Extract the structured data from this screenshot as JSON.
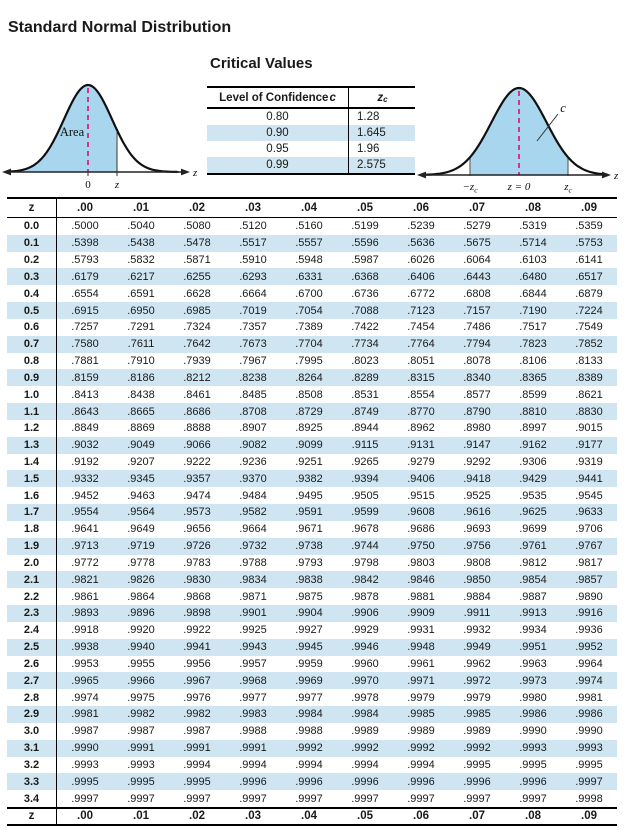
{
  "title": "Standard Normal Distribution",
  "critical_values": {
    "heading": "Critical Values",
    "header": {
      "col1": "Level of Confidence ",
      "col1_var": "c",
      "col2_var": "z",
      "col2_sub": "c"
    },
    "rows": [
      [
        "0.80",
        "1.28"
      ],
      [
        "0.90",
        "1.645"
      ],
      [
        "0.95",
        "1.96"
      ],
      [
        "0.99",
        "2.575"
      ]
    ]
  },
  "left_curve": {
    "area_label": "Area",
    "axis_label": "z",
    "tick_zero": "0",
    "tick_z": "z"
  },
  "right_curve": {
    "region_label": "c",
    "axis_label": "z",
    "tick_neg": "−z",
    "tick_neg_sub": "c",
    "tick_center": "z = 0",
    "tick_pos": "z",
    "tick_pos_sub": "c"
  },
  "colors": {
    "stripe": "#cfe6f2",
    "curve_fill": "#a9d6ef",
    "dashed_line": "#d6338c",
    "border": "#000000"
  },
  "z_table": {
    "columns": [
      "z",
      ".00",
      ".01",
      ".02",
      ".03",
      ".04",
      ".05",
      ".06",
      ".07",
      ".08",
      ".09"
    ],
    "footer_repeats_header": true,
    "rows": [
      {
        "z": "0.0",
        "v": [
          ".5000",
          ".5040",
          ".5080",
          ".5120",
          ".5160",
          ".5199",
          ".5239",
          ".5279",
          ".5319",
          ".5359"
        ]
      },
      {
        "z": "0.1",
        "v": [
          ".5398",
          ".5438",
          ".5478",
          ".5517",
          ".5557",
          ".5596",
          ".5636",
          ".5675",
          ".5714",
          ".5753"
        ]
      },
      {
        "z": "0.2",
        "v": [
          ".5793",
          ".5832",
          ".5871",
          ".5910",
          ".5948",
          ".5987",
          ".6026",
          ".6064",
          ".6103",
          ".6141"
        ]
      },
      {
        "z": "0.3",
        "v": [
          ".6179",
          ".6217",
          ".6255",
          ".6293",
          ".6331",
          ".6368",
          ".6406",
          ".6443",
          ".6480",
          ".6517"
        ]
      },
      {
        "z": "0.4",
        "v": [
          ".6554",
          ".6591",
          ".6628",
          ".6664",
          ".6700",
          ".6736",
          ".6772",
          ".6808",
          ".6844",
          ".6879"
        ]
      },
      {
        "z": "0.5",
        "v": [
          ".6915",
          ".6950",
          ".6985",
          ".7019",
          ".7054",
          ".7088",
          ".7123",
          ".7157",
          ".7190",
          ".7224"
        ]
      },
      {
        "z": "0.6",
        "v": [
          ".7257",
          ".7291",
          ".7324",
          ".7357",
          ".7389",
          ".7422",
          ".7454",
          ".7486",
          ".7517",
          ".7549"
        ]
      },
      {
        "z": "0.7",
        "v": [
          ".7580",
          ".7611",
          ".7642",
          ".7673",
          ".7704",
          ".7734",
          ".7764",
          ".7794",
          ".7823",
          ".7852"
        ]
      },
      {
        "z": "0.8",
        "v": [
          ".7881",
          ".7910",
          ".7939",
          ".7967",
          ".7995",
          ".8023",
          ".8051",
          ".8078",
          ".8106",
          ".8133"
        ]
      },
      {
        "z": "0.9",
        "v": [
          ".8159",
          ".8186",
          ".8212",
          ".8238",
          ".8264",
          ".8289",
          ".8315",
          ".8340",
          ".8365",
          ".8389"
        ]
      },
      {
        "z": "1.0",
        "v": [
          ".8413",
          ".8438",
          ".8461",
          ".8485",
          ".8508",
          ".8531",
          ".8554",
          ".8577",
          ".8599",
          ".8621"
        ]
      },
      {
        "z": "1.1",
        "v": [
          ".8643",
          ".8665",
          ".8686",
          ".8708",
          ".8729",
          ".8749",
          ".8770",
          ".8790",
          ".8810",
          ".8830"
        ]
      },
      {
        "z": "1.2",
        "v": [
          ".8849",
          ".8869",
          ".8888",
          ".8907",
          ".8925",
          ".8944",
          ".8962",
          ".8980",
          ".8997",
          ".9015"
        ]
      },
      {
        "z": "1.3",
        "v": [
          ".9032",
          ".9049",
          ".9066",
          ".9082",
          ".9099",
          ".9115",
          ".9131",
          ".9147",
          ".9162",
          ".9177"
        ]
      },
      {
        "z": "1.4",
        "v": [
          ".9192",
          ".9207",
          ".9222",
          ".9236",
          ".9251",
          ".9265",
          ".9279",
          ".9292",
          ".9306",
          ".9319"
        ]
      },
      {
        "z": "1.5",
        "v": [
          ".9332",
          ".9345",
          ".9357",
          ".9370",
          ".9382",
          ".9394",
          ".9406",
          ".9418",
          ".9429",
          ".9441"
        ]
      },
      {
        "z": "1.6",
        "v": [
          ".9452",
          ".9463",
          ".9474",
          ".9484",
          ".9495",
          ".9505",
          ".9515",
          ".9525",
          ".9535",
          ".9545"
        ]
      },
      {
        "z": "1.7",
        "v": [
          ".9554",
          ".9564",
          ".9573",
          ".9582",
          ".9591",
          ".9599",
          ".9608",
          ".9616",
          ".9625",
          ".9633"
        ]
      },
      {
        "z": "1.8",
        "v": [
          ".9641",
          ".9649",
          ".9656",
          ".9664",
          ".9671",
          ".9678",
          ".9686",
          ".9693",
          ".9699",
          ".9706"
        ]
      },
      {
        "z": "1.9",
        "v": [
          ".9713",
          ".9719",
          ".9726",
          ".9732",
          ".9738",
          ".9744",
          ".9750",
          ".9756",
          ".9761",
          ".9767"
        ]
      },
      {
        "z": "2.0",
        "v": [
          ".9772",
          ".9778",
          ".9783",
          ".9788",
          ".9793",
          ".9798",
          ".9803",
          ".9808",
          ".9812",
          ".9817"
        ]
      },
      {
        "z": "2.1",
        "v": [
          ".9821",
          ".9826",
          ".9830",
          ".9834",
          ".9838",
          ".9842",
          ".9846",
          ".9850",
          ".9854",
          ".9857"
        ]
      },
      {
        "z": "2.2",
        "v": [
          ".9861",
          ".9864",
          ".9868",
          ".9871",
          ".9875",
          ".9878",
          ".9881",
          ".9884",
          ".9887",
          ".9890"
        ]
      },
      {
        "z": "2.3",
        "v": [
          ".9893",
          ".9896",
          ".9898",
          ".9901",
          ".9904",
          ".9906",
          ".9909",
          ".9911",
          ".9913",
          ".9916"
        ]
      },
      {
        "z": "2.4",
        "v": [
          ".9918",
          ".9920",
          ".9922",
          ".9925",
          ".9927",
          ".9929",
          ".9931",
          ".9932",
          ".9934",
          ".9936"
        ]
      },
      {
        "z": "2.5",
        "v": [
          ".9938",
          ".9940",
          ".9941",
          ".9943",
          ".9945",
          ".9946",
          ".9948",
          ".9949",
          ".9951",
          ".9952"
        ]
      },
      {
        "z": "2.6",
        "v": [
          ".9953",
          ".9955",
          ".9956",
          ".9957",
          ".9959",
          ".9960",
          ".9961",
          ".9962",
          ".9963",
          ".9964"
        ]
      },
      {
        "z": "2.7",
        "v": [
          ".9965",
          ".9966",
          ".9967",
          ".9968",
          ".9969",
          ".9970",
          ".9971",
          ".9972",
          ".9973",
          ".9974"
        ]
      },
      {
        "z": "2.8",
        "v": [
          ".9974",
          ".9975",
          ".9976",
          ".9977",
          ".9977",
          ".9978",
          ".9979",
          ".9979",
          ".9980",
          ".9981"
        ]
      },
      {
        "z": "2.9",
        "v": [
          ".9981",
          ".9982",
          ".9982",
          ".9983",
          ".9984",
          ".9984",
          ".9985",
          ".9985",
          ".9986",
          ".9986"
        ]
      },
      {
        "z": "3.0",
        "v": [
          ".9987",
          ".9987",
          ".9987",
          ".9988",
          ".9988",
          ".9989",
          ".9989",
          ".9989",
          ".9990",
          ".9990"
        ]
      },
      {
        "z": "3.1",
        "v": [
          ".9990",
          ".9991",
          ".9991",
          ".9991",
          ".9992",
          ".9992",
          ".9992",
          ".9992",
          ".9993",
          ".9993"
        ]
      },
      {
        "z": "3.2",
        "v": [
          ".9993",
          ".9993",
          ".9994",
          ".9994",
          ".9994",
          ".9994",
          ".9994",
          ".9995",
          ".9995",
          ".9995"
        ]
      },
      {
        "z": "3.3",
        "v": [
          ".9995",
          ".9995",
          ".9995",
          ".9996",
          ".9996",
          ".9996",
          ".9996",
          ".9996",
          ".9996",
          ".9997"
        ]
      },
      {
        "z": "3.4",
        "v": [
          ".9997",
          ".9997",
          ".9997",
          ".9997",
          ".9997",
          ".9997",
          ".9997",
          ".9997",
          ".9997",
          ".9998"
        ]
      }
    ]
  }
}
